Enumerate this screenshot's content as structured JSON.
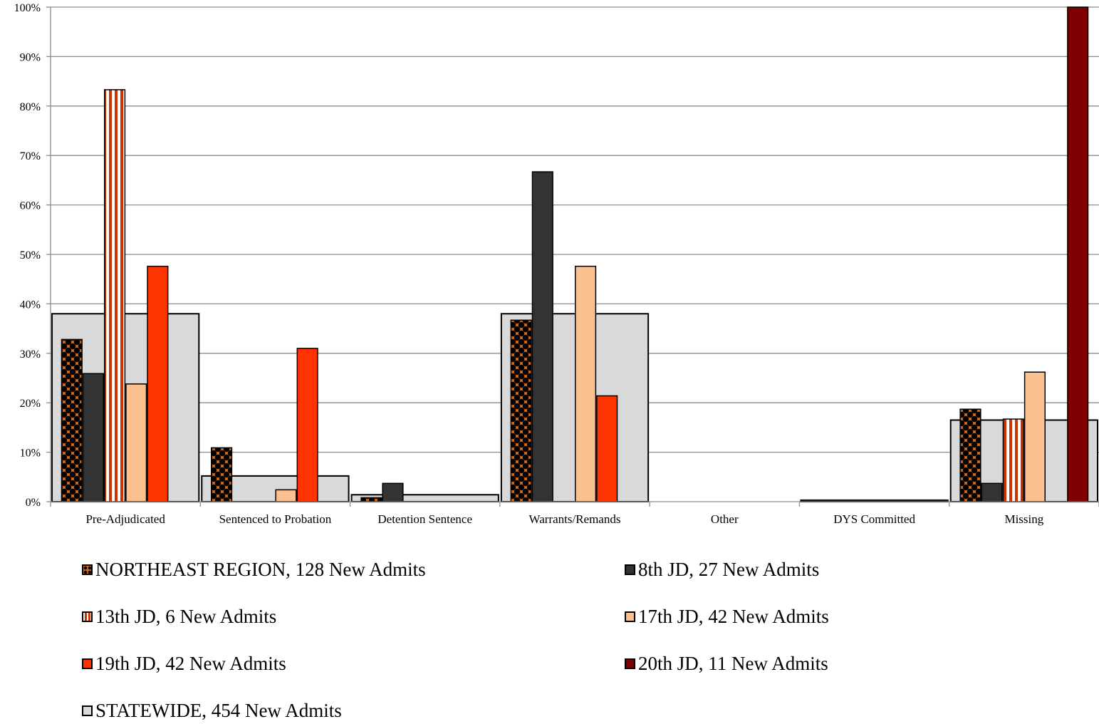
{
  "chart_data": {
    "type": "bar",
    "categories": [
      "Pre-Adjudicated",
      "Sentenced to Probation",
      "Detention Sentence",
      "Warrants/Remands",
      "Other",
      "DYS Committed",
      "Missing"
    ],
    "ylim": [
      0,
      100
    ],
    "y_ticks": [
      "0%",
      "10%",
      "20%",
      "30%",
      "40%",
      "50%",
      "60%",
      "70%",
      "80%",
      "90%",
      "100%"
    ],
    "grid": true,
    "legend_position": "bottom",
    "background_series": {
      "name": "STATEWIDE, 454 New Admits",
      "values": [
        38,
        5.2,
        1.4,
        38,
        0,
        0.3,
        16.5
      ],
      "fill": "#d9d9d9"
    },
    "series": [
      {
        "name": "NORTHEAST REGION, 128 New Admits",
        "values": [
          32.8,
          10.9,
          0.8,
          36.7,
          0,
          0,
          18.7
        ],
        "fill": "#d46a1a",
        "pattern": "dots"
      },
      {
        "name": "8th JD, 27 New Admits",
        "values": [
          25.9,
          0,
          3.7,
          66.7,
          0,
          0,
          3.7
        ],
        "fill": "#333333"
      },
      {
        "name": "13th JD, 6 New Admits",
        "values": [
          83.3,
          0,
          0,
          0,
          0,
          0,
          16.7
        ],
        "fill": "#cc3300",
        "pattern": "stripes"
      },
      {
        "name": "17th JD, 42 New Admits",
        "values": [
          23.8,
          2.4,
          0,
          47.6,
          0,
          0,
          26.2
        ],
        "fill": "#fac090"
      },
      {
        "name": "19th JD, 42 New Admits",
        "values": [
          47.6,
          31,
          0,
          21.4,
          0,
          0,
          0
        ],
        "fill": "#ff3300"
      },
      {
        "name": "20th JD, 11 New Admits",
        "values": [
          0,
          0,
          0,
          0,
          0,
          0,
          100
        ],
        "fill": "#7f0000"
      }
    ]
  }
}
